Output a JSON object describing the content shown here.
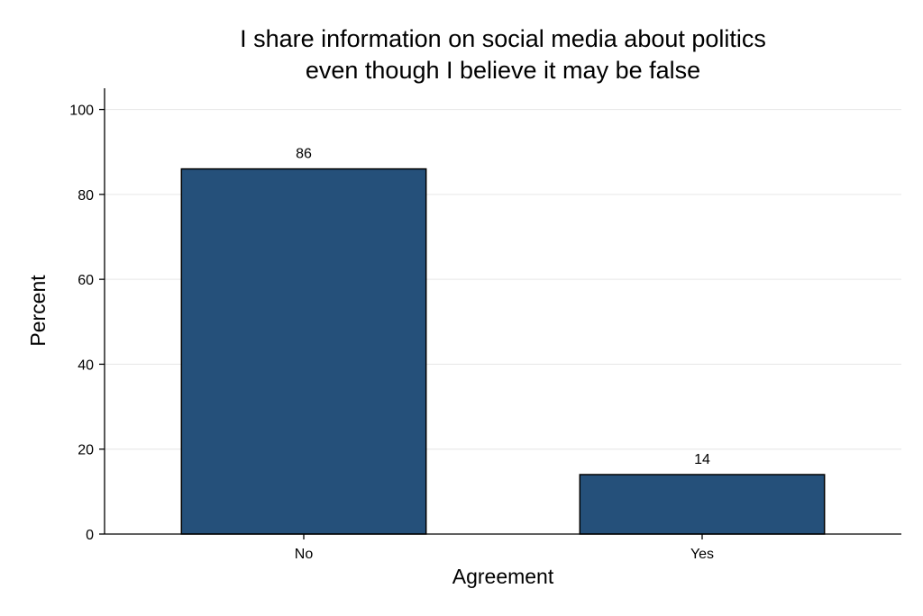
{
  "chart_data": {
    "type": "bar",
    "title_lines": [
      "I share information on social media about politics",
      "even though I believe it may be false"
    ],
    "xlabel": "Agreement",
    "ylabel": "Percent",
    "categories": [
      "No",
      "Yes"
    ],
    "values": [
      86,
      14
    ],
    "value_labels": [
      "86",
      "14"
    ],
    "ylim": [
      0,
      105
    ],
    "yticks": [
      0,
      20,
      40,
      60,
      80,
      100
    ],
    "ytick_labels": [
      "0",
      "20",
      "40",
      "60",
      "80",
      "100"
    ],
    "grid": true,
    "legend": "none",
    "bar_color": "#25507a"
  }
}
